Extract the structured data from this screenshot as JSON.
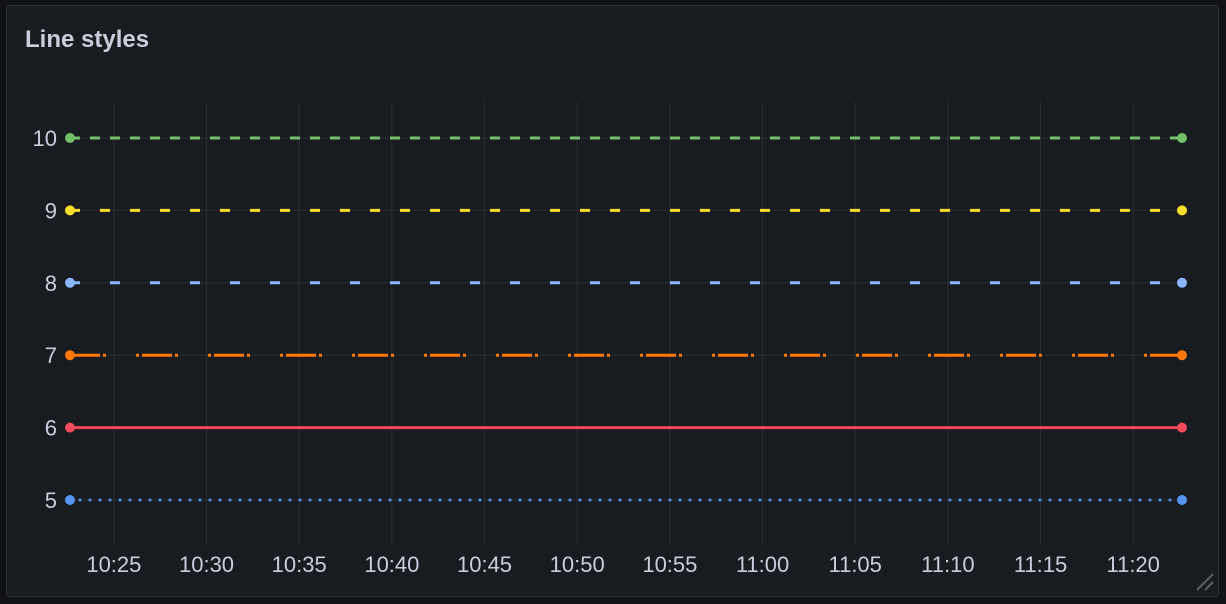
{
  "panel": {
    "title": "Line styles"
  },
  "chart_data": {
    "type": "line",
    "title": "Line styles",
    "x_ticks": [
      "10:25",
      "10:30",
      "10:35",
      "10:40",
      "10:45",
      "10:50",
      "10:55",
      "11:00",
      "11:05",
      "11:10",
      "11:15",
      "11:20"
    ],
    "x_range": [
      "10:22:38",
      "11:22:38"
    ],
    "y_ticks": [
      5,
      6,
      7,
      8,
      9,
      10
    ],
    "ylim": [
      4.4,
      10.5
    ],
    "grid": true,
    "series": [
      {
        "values": [
          10,
          10
        ],
        "color": "#73bf69",
        "style": "dash",
        "dash": [
          10,
          10
        ]
      },
      {
        "values": [
          9,
          9
        ],
        "color": "#fade2a",
        "style": "dash",
        "dash": [
          10,
          20
        ]
      },
      {
        "values": [
          8,
          8
        ],
        "color": "#8ab8ff",
        "style": "dash",
        "dash": [
          10,
          30
        ]
      },
      {
        "values": [
          7,
          7
        ],
        "color": "#ff780a",
        "style": "dash-dot",
        "dash": [
          30,
          3,
          3,
          30,
          3,
          3
        ]
      },
      {
        "values": [
          6,
          6
        ],
        "color": "#f2495c",
        "style": "solid",
        "dash": []
      },
      {
        "values": [
          5,
          5
        ],
        "color": "#5794f2",
        "style": "dots",
        "dash": [
          0,
          10
        ]
      }
    ],
    "x": [
      "10:22:38",
      "11:22:38"
    ]
  }
}
